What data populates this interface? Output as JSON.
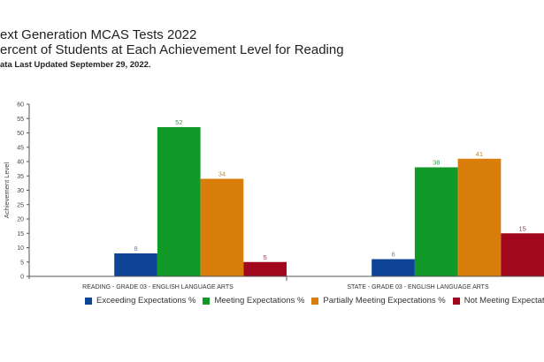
{
  "header": {
    "title": "ext Generation MCAS Tests 2022",
    "subtitle": "ercent of Students at Each Achievement Level for Reading",
    "updated": "ata Last Updated September 29, 2022."
  },
  "chart_data": {
    "type": "bar",
    "ylabel": "Achievement Level",
    "xlabel": "",
    "ylim": [
      0,
      60
    ],
    "yticks": [
      0,
      5,
      10,
      15,
      20,
      25,
      30,
      35,
      40,
      45,
      50,
      55,
      60
    ],
    "grid": false,
    "legend_position": "bottom",
    "categories": [
      "READING - GRADE 03 - ENGLISH LANGUAGE ARTS",
      "STATE - GRADE 03 - ENGLISH LANGUAGE ARTS"
    ],
    "series": [
      {
        "name": "Exceeding Expectations %",
        "color": "#0d4496",
        "label_color": "#6d7fa3",
        "values": [
          8,
          6
        ]
      },
      {
        "name": "Meeting Expectations %",
        "color": "#119928",
        "label_color": "#3c9a4c",
        "values": [
          52,
          38
        ]
      },
      {
        "name": "Partially Meeting Expectations %",
        "color": "#d97e0b",
        "label_color": "#c48a3a",
        "values": [
          34,
          41
        ]
      },
      {
        "name": "Not Meeting Expectations %",
        "color": "#a3071e",
        "label_color": "#8e4050",
        "values": [
          5,
          15
        ]
      }
    ]
  }
}
